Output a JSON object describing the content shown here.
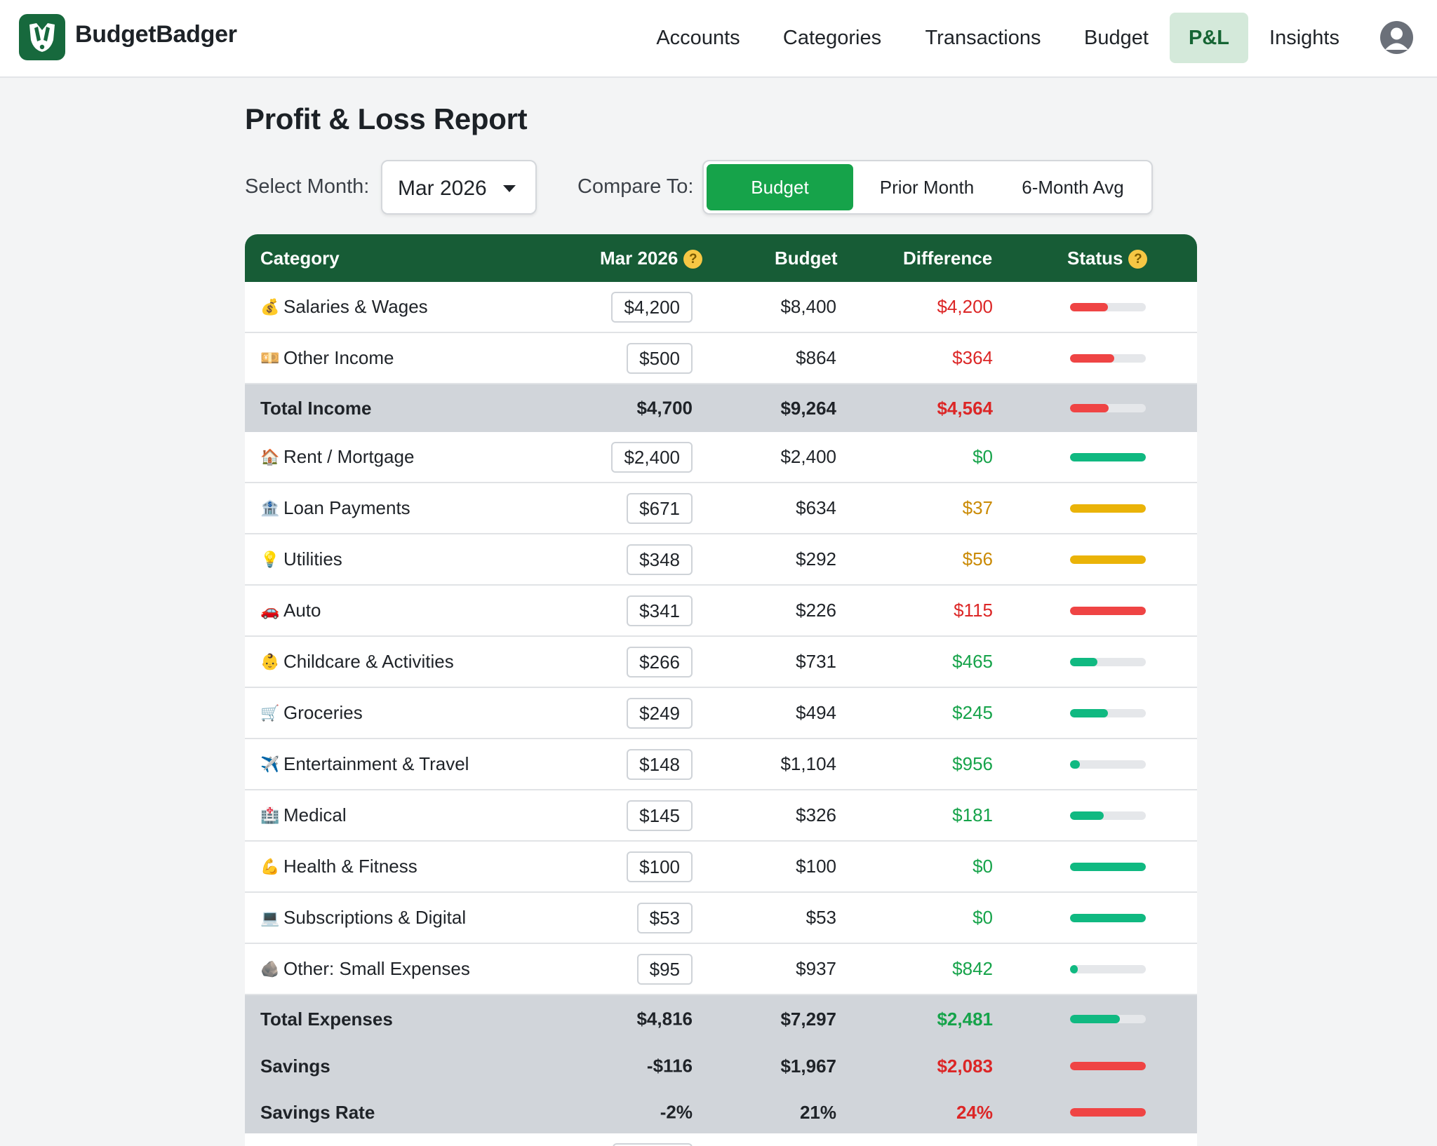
{
  "app": {
    "name": "BudgetBadger"
  },
  "nav": {
    "items": [
      {
        "label": "Accounts",
        "active": false
      },
      {
        "label": "Categories",
        "active": false
      },
      {
        "label": "Transactions",
        "active": false
      },
      {
        "label": "Budget",
        "active": false
      },
      {
        "label": "P&L",
        "active": true
      },
      {
        "label": "Insights",
        "active": false
      }
    ]
  },
  "page": {
    "title": "Profit & Loss Report"
  },
  "controls": {
    "month_label": "Select Month:",
    "month_value": "Mar 2026",
    "compare_label": "Compare To:",
    "compare_options": [
      "Budget",
      "Prior Month",
      "6-Month Avg"
    ],
    "compare_selected": "Budget"
  },
  "table": {
    "headers": {
      "category": "Category",
      "month": "Mar 2026",
      "budget": "Budget",
      "difference": "Difference",
      "status": "Status"
    },
    "rows": [
      {
        "category": "Salaries & Wages",
        "emoji": "💰",
        "amount": "$4,200",
        "budget": "$8,400",
        "difference": "$4,200",
        "tone": "red",
        "status_pct": 50
      },
      {
        "category": "Other Income",
        "emoji": "💴",
        "amount": "$500",
        "budget": "$864",
        "difference": "$364",
        "tone": "red",
        "status_pct": 58
      },
      {
        "category": "Total Income",
        "total": true,
        "amount": "$4,700",
        "budget": "$9,264",
        "difference": "$4,564",
        "tone": "red",
        "status_pct": 51
      },
      {
        "category": "Rent / Mortgage",
        "emoji": "🏠",
        "amount": "$2,400",
        "budget": "$2,400",
        "difference": "$0",
        "tone": "green",
        "status_pct": 100
      },
      {
        "category": "Loan Payments",
        "emoji": "🏦",
        "amount": "$671",
        "budget": "$634",
        "difference": "$37",
        "tone": "amber",
        "status_pct": 100
      },
      {
        "category": "Utilities",
        "emoji": "💡",
        "amount": "$348",
        "budget": "$292",
        "difference": "$56",
        "tone": "amber",
        "status_pct": 100
      },
      {
        "category": "Auto",
        "emoji": "🚗",
        "amount": "$341",
        "budget": "$226",
        "difference": "$115",
        "tone": "red",
        "status_pct": 100
      },
      {
        "category": "Childcare & Activities",
        "emoji": "👶",
        "amount": "$266",
        "budget": "$731",
        "difference": "$465",
        "tone": "green",
        "status_pct": 36
      },
      {
        "category": "Groceries",
        "emoji": "🛒",
        "amount": "$249",
        "budget": "$494",
        "difference": "$245",
        "tone": "green",
        "status_pct": 50
      },
      {
        "category": "Entertainment & Travel",
        "emoji": "✈️",
        "amount": "$148",
        "budget": "$1,104",
        "difference": "$956",
        "tone": "green",
        "status_pct": 13
      },
      {
        "category": "Medical",
        "emoji": "🏥",
        "amount": "$145",
        "budget": "$326",
        "difference": "$181",
        "tone": "green",
        "status_pct": 44
      },
      {
        "category": "Health & Fitness",
        "emoji": "💪",
        "amount": "$100",
        "budget": "$100",
        "difference": "$0",
        "tone": "green",
        "status_pct": 100
      },
      {
        "category": "Subscriptions & Digital",
        "emoji": "💻",
        "amount": "$53",
        "budget": "$53",
        "difference": "$0",
        "tone": "green",
        "status_pct": 100
      },
      {
        "category": "Other: Small Expenses",
        "emoji": "🪨",
        "amount": "$95",
        "budget": "$937",
        "difference": "$842",
        "tone": "green",
        "status_pct": 10
      },
      {
        "category": "Total Expenses",
        "total": true,
        "amount": "$4,816",
        "budget": "$7,297",
        "difference": "$2,481",
        "tone": "green",
        "status_pct": 66
      },
      {
        "category": "Savings",
        "total": true,
        "amount": "-$116",
        "budget": "$1,967",
        "difference": "$2,083",
        "tone": "red",
        "status_pct": 100
      },
      {
        "category": "Savings Rate",
        "total": true,
        "amount": "-2%",
        "budget": "21%",
        "difference": "24%",
        "tone": "red",
        "status_pct": 100
      }
    ]
  },
  "colors": {
    "brand": "#17693d",
    "header_bg": "#175c36",
    "accent": "#16a34a",
    "red": "#ef4444",
    "green": "#10b981",
    "amber": "#eab308",
    "total_row_bg": "#d1d5da"
  },
  "icons": {
    "logo": "badger-icon",
    "avatar": "user-avatar-icon",
    "help": "question-icon",
    "dropdown": "caret-down-icon"
  }
}
